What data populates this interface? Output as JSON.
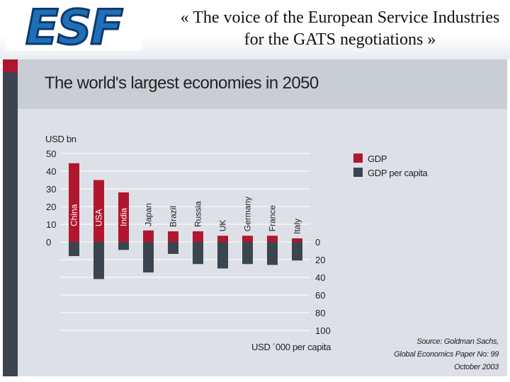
{
  "header": {
    "logo_text": "ESF",
    "title": "« The voice of the European Service Industries for the GATS negotiations »"
  },
  "panel": {
    "title": "The world's largest economies in 2050"
  },
  "source": {
    "line1": "Source: Goldman Sachs,",
    "line2": "Global Economics Paper No: 99",
    "line3": "October 2003"
  },
  "colors": {
    "gdp": "#b0172f",
    "gdp_per_capita": "#3a4550",
    "panel_bg": "#dde0e6",
    "title_bar": "#c9cdd4"
  },
  "chart_data": {
    "type": "bar",
    "title": "The world's largest economies in 2050",
    "categories": [
      "China",
      "USA",
      "India",
      "Japan",
      "Brazil",
      "Russia",
      "UK",
      "Germany",
      "France",
      "Italy"
    ],
    "category_labels": [
      "China",
      "USA",
      "India",
      "Japan",
      "Brazil",
      "Russia",
      "UK",
      "Germany",
      "France",
      "Italy"
    ],
    "series": [
      {
        "name": "GDP",
        "unit_label": "USD bn",
        "direction": "up",
        "values": [
          44.5,
          35,
          28,
          6.5,
          6,
          6,
          3.5,
          3.5,
          3.5,
          2
        ]
      },
      {
        "name": "GDP per capita",
        "unit_label": "USD ´000 per capita",
        "direction": "down",
        "values": [
          16,
          42,
          9,
          34.5,
          13.5,
          25,
          30,
          25,
          26,
          21
        ]
      }
    ],
    "y_axis_top": {
      "label": "USD bn",
      "ticks": [
        0,
        10,
        20,
        30,
        40,
        50
      ],
      "range": [
        0,
        50
      ]
    },
    "y_axis_bottom": {
      "label": "USD ´000 per capita",
      "ticks": [
        0,
        20,
        40,
        60,
        80,
        100
      ],
      "range": [
        0,
        100
      ]
    },
    "grid": true,
    "legend": {
      "position": "top-right",
      "entries": [
        "GDP",
        "GDP per capita"
      ]
    }
  }
}
